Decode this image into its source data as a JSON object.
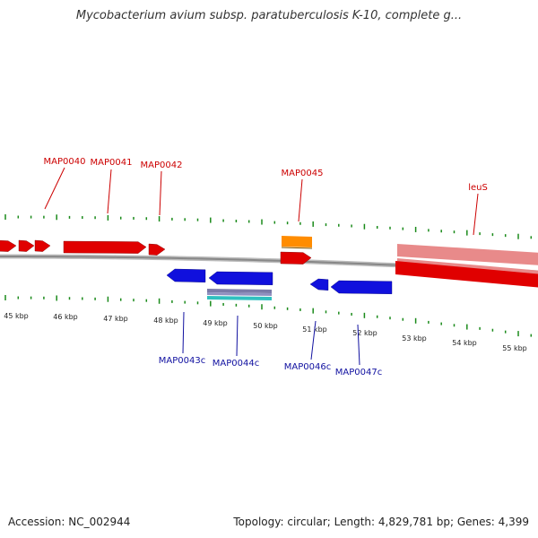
{
  "title": "Mycobacterium avium subsp. paratuberculosis K-10, complete g...",
  "footer": {
    "accession": "Accession: NC_002944",
    "summary": "Topology: circular; Length: 4,829,781 bp; Genes: 4,399"
  },
  "colors": {
    "forward": "#e00000",
    "reverse": "#1010dd",
    "rna": "#ff8c00",
    "backbone": "#888888",
    "ticks": "#1a8a1a",
    "label_forward": "#cc0000",
    "label_reverse": "#1010a0"
  },
  "scale_labels": [
    "45 kbp",
    "46 kbp",
    "47 kbp",
    "48 kbp",
    "49 kbp",
    "50 kbp",
    "51 kbp",
    "52 kbp",
    "53 kbp",
    "54 kbp",
    "55 kbp"
  ],
  "forward_labels": [
    "MAP0040",
    "MAP0041",
    "MAP0042",
    "MAP0045",
    "leuS"
  ],
  "reverse_labels": [
    "MAP0043c",
    "MAP0044c",
    "MAP0046c",
    "MAP0047c"
  ]
}
